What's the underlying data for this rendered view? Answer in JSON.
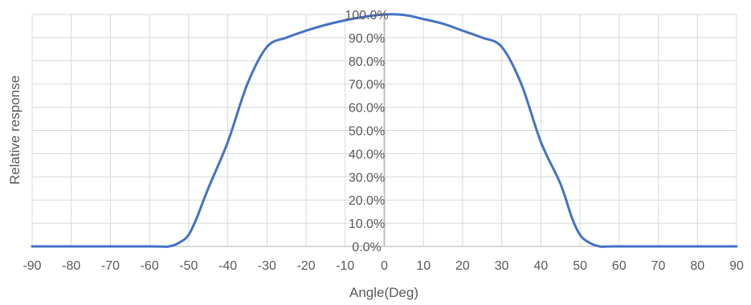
{
  "chart_data": {
    "type": "line",
    "title": "",
    "xlabel": "Angle(Deg)",
    "ylabel": "Relative response",
    "xlim": [
      -90,
      90
    ],
    "ylim": [
      0,
      100
    ],
    "xticks": [
      -90,
      -80,
      -70,
      -60,
      -50,
      -40,
      -30,
      -20,
      -10,
      0,
      10,
      20,
      30,
      40,
      50,
      60,
      70,
      80,
      90
    ],
    "yticks": [
      0,
      10,
      20,
      30,
      40,
      50,
      60,
      70,
      80,
      90,
      100
    ],
    "ytick_labels": [
      "0.0%",
      "10.0%",
      "20.0%",
      "30.0%",
      "40.0%",
      "50.0%",
      "60.0%",
      "70.0%",
      "80.0%",
      "90.0%",
      "100.0%"
    ],
    "grid": true,
    "legend": "none",
    "colors": {
      "series": "#4472C4",
      "grid": "#d9d9d9",
      "zero_axis": "#bfbfbf",
      "text": "#595959"
    },
    "series": [
      {
        "values": [
          {
            "x": -90,
            "y": 0
          },
          {
            "x": -60,
            "y": 0
          },
          {
            "x": -55,
            "y": 0
          },
          {
            "x": -52,
            "y": 2
          },
          {
            "x": -50,
            "y": 5
          },
          {
            "x": -48,
            "y": 12
          },
          {
            "x": -45,
            "y": 25
          },
          {
            "x": -40,
            "y": 45
          },
          {
            "x": -35,
            "y": 70
          },
          {
            "x": -30,
            "y": 86
          },
          {
            "x": -25,
            "y": 90
          },
          {
            "x": -20,
            "y": 93
          },
          {
            "x": -15,
            "y": 95.5
          },
          {
            "x": -10,
            "y": 97.5
          },
          {
            "x": -5,
            "y": 99
          },
          {
            "x": 0,
            "y": 100
          },
          {
            "x": 5,
            "y": 99.8
          },
          {
            "x": 10,
            "y": 98
          },
          {
            "x": 15,
            "y": 96
          },
          {
            "x": 20,
            "y": 93
          },
          {
            "x": 25,
            "y": 90
          },
          {
            "x": 30,
            "y": 86
          },
          {
            "x": 35,
            "y": 70
          },
          {
            "x": 40,
            "y": 45
          },
          {
            "x": 45,
            "y": 27
          },
          {
            "x": 48,
            "y": 12
          },
          {
            "x": 50,
            "y": 5
          },
          {
            "x": 52,
            "y": 2
          },
          {
            "x": 55,
            "y": 0
          },
          {
            "x": 60,
            "y": 0
          },
          {
            "x": 90,
            "y": 0
          }
        ]
      }
    ]
  }
}
